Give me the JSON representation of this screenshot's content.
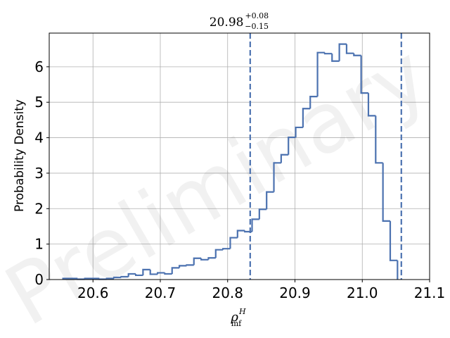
{
  "chart_data": {
    "type": "histogram",
    "title": {
      "main": "20.98",
      "sup": "+0.08",
      "sub": "−0.15"
    },
    "xlabel": {
      "main": "ρ",
      "sup": "H",
      "sub": "mf"
    },
    "ylabel": "Probability Density",
    "watermark": "Preliminary",
    "xlim": [
      20.535,
      21.1
    ],
    "ylim": [
      0,
      6.95
    ],
    "xticks": [
      20.6,
      20.7,
      20.8,
      20.9,
      21.0,
      21.1
    ],
    "xtick_labels": [
      "20.6",
      "20.7",
      "20.8",
      "20.9",
      "21.0",
      "21.1"
    ],
    "yticks": [
      0,
      1,
      2,
      3,
      4,
      5,
      6
    ],
    "ytick_labels": [
      "0",
      "1",
      "2",
      "3",
      "4",
      "5",
      "6"
    ],
    "grid": true,
    "bins_start": 20.5555,
    "bin_width": 0.0108,
    "values": [
      0.03,
      0.03,
      0.01,
      0.03,
      0.03,
      0.01,
      0.03,
      0.06,
      0.08,
      0.16,
      0.12,
      0.28,
      0.15,
      0.19,
      0.16,
      0.33,
      0.39,
      0.41,
      0.6,
      0.56,
      0.61,
      0.84,
      0.87,
      1.18,
      1.38,
      1.35,
      1.7,
      1.98,
      2.47,
      3.29,
      3.52,
      4.01,
      4.29,
      4.82,
      5.16,
      6.4,
      6.37,
      6.16,
      6.64,
      6.38,
      6.32,
      5.26,
      4.62,
      3.29,
      1.65,
      0.54
    ],
    "vlines": [
      20.8335,
      21.058
    ],
    "colors": {
      "series": "#4C72B0",
      "vline": "#4C72B0",
      "grid": "#b0b0b0",
      "axis": "#000000"
    }
  }
}
